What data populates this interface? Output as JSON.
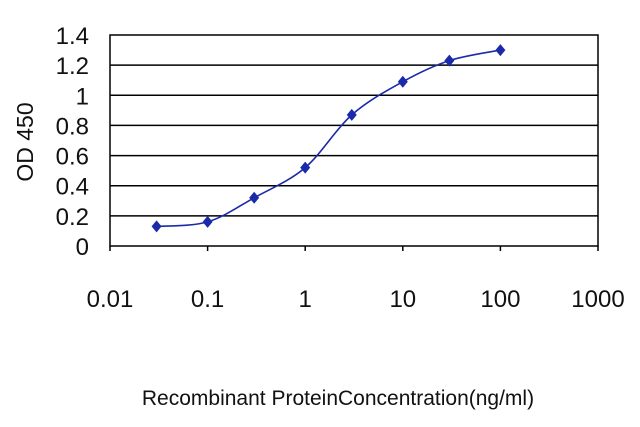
{
  "chart_data": {
    "type": "line",
    "xlabel": "Recombinant ProteinConcentration(ng/ml)",
    "ylabel": "OD 450",
    "x_scale": "log",
    "xlim": [
      0.01,
      1000
    ],
    "ylim": [
      0,
      1.4
    ],
    "grid": "horizontal",
    "xticks": [
      {
        "value": 0.01,
        "label": "0.01"
      },
      {
        "value": 0.1,
        "label": "0.1"
      },
      {
        "value": 1,
        "label": "1"
      },
      {
        "value": 10,
        "label": "10"
      },
      {
        "value": 100,
        "label": "100"
      },
      {
        "value": 1000,
        "label": "1000"
      }
    ],
    "yticks": [
      {
        "value": 0,
        "label": "0"
      },
      {
        "value": 0.2,
        "label": "0.2"
      },
      {
        "value": 0.4,
        "label": "0.4"
      },
      {
        "value": 0.6,
        "label": "0.6"
      },
      {
        "value": 0.8,
        "label": "0.8"
      },
      {
        "value": 1.0,
        "label": "1"
      },
      {
        "value": 1.2,
        "label": "1.2"
      },
      {
        "value": 1.4,
        "label": "1.4"
      }
    ],
    "series": [
      {
        "color": "#1a2aa8",
        "marker": "diamond",
        "points": [
          {
            "x": 0.03,
            "y": 0.13
          },
          {
            "x": 0.1,
            "y": 0.16
          },
          {
            "x": 0.3,
            "y": 0.32
          },
          {
            "x": 1,
            "y": 0.52
          },
          {
            "x": 3,
            "y": 0.87
          },
          {
            "x": 10,
            "y": 1.09
          },
          {
            "x": 30,
            "y": 1.23
          },
          {
            "x": 100,
            "y": 1.3
          }
        ]
      }
    ]
  }
}
